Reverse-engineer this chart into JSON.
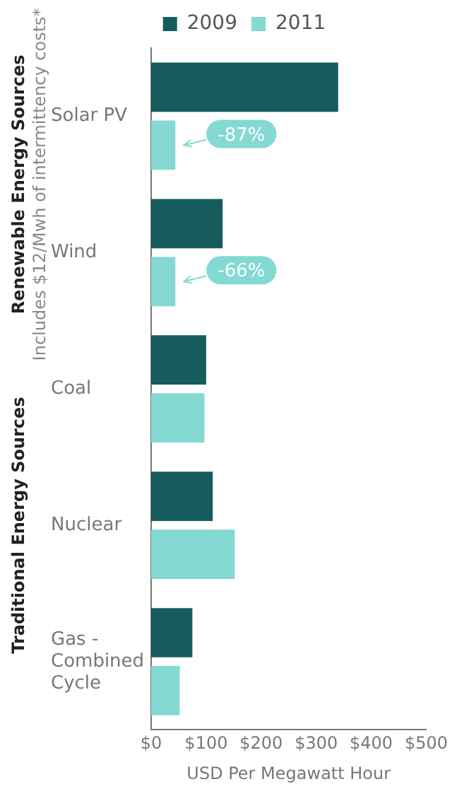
{
  "chart_data": {
    "type": "bar",
    "orientation": "horizontal",
    "xlabel": "USD Per Megawatt Hour",
    "categories": [
      "Solar PV",
      "Wind",
      "Coal",
      "Nuclear",
      "Gas - Combined Cycle"
    ],
    "series": [
      {
        "name": "2009",
        "color": "#165c5c",
        "values": [
          340,
          130,
          100,
          112,
          75
        ]
      },
      {
        "name": "2011",
        "color": "#84d9d2",
        "values": [
          44,
          44,
          97,
          152,
          52
        ]
      }
    ],
    "xlim": [
      0,
      500
    ],
    "xticks": [
      {
        "value": 0,
        "label": "$0"
      },
      {
        "value": 100,
        "label": "$100"
      },
      {
        "value": 200,
        "label": "$200"
      },
      {
        "value": 300,
        "label": "$300"
      },
      {
        "value": 400,
        "label": "$400"
      },
      {
        "value": 500,
        "label": "$500"
      }
    ],
    "grid": false,
    "legend": "top",
    "annotations": [
      {
        "text": "-87%",
        "x": 44,
        "y": "Solar PV"
      },
      {
        "text": "-66%",
        "x": 44,
        "y": "Wind"
      },
      "Renewable Energy Sources",
      "Includes $12/Mwh of intermittency costs*",
      "Traditional Energy Sources"
    ]
  }
}
